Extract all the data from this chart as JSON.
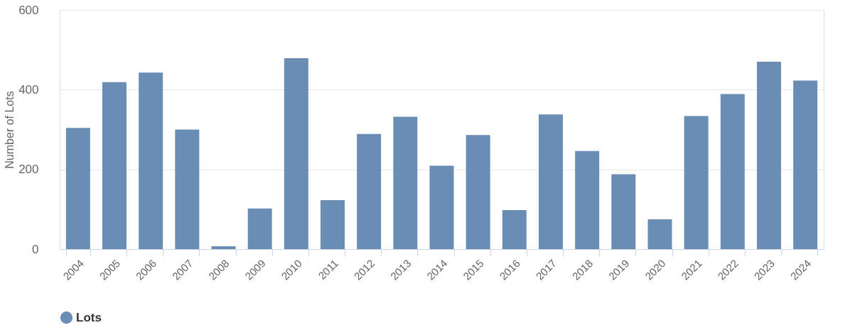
{
  "chart_data": {
    "type": "bar",
    "ylabel": "Number of Lots",
    "categories": [
      "2004",
      "2005",
      "2006",
      "2007",
      "2008",
      "2009",
      "2010",
      "2011",
      "2012",
      "2013",
      "2014",
      "2015",
      "2016",
      "2017",
      "2018",
      "2019",
      "2020",
      "2021",
      "2022",
      "2023",
      "2024"
    ],
    "series": [
      {
        "name": "Lots",
        "color": "#6a8db3",
        "values": [
          304,
          419,
          443,
          300,
          7,
          102,
          479,
          123,
          289,
          332,
          209,
          286,
          98,
          338,
          246,
          188,
          75,
          334,
          389,
          470,
          423
        ]
      }
    ],
    "ylim": [
      0,
      600
    ],
    "yticks": [
      0,
      200,
      400,
      600
    ],
    "grid": "y",
    "legend": "bottom"
  }
}
